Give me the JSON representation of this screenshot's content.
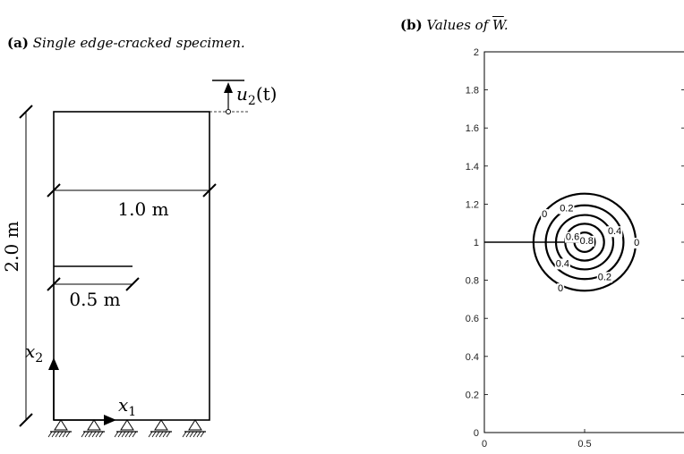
{
  "panel_a": {
    "tag": "(a)",
    "caption": "Single edge-cracked specimen.",
    "height_label": "2.0 m",
    "width_label": "1.0 m",
    "crack_label": "0.5 m",
    "x1_label": "x",
    "x1_sub": "1",
    "x2_label": "x",
    "x2_sub": "2",
    "disp_label": "u",
    "disp_sub": "2",
    "disp_arg": "(t)"
  },
  "panel_b": {
    "tag": "(b)",
    "caption_pre": "Values of ",
    "caption_sym": "W",
    "caption_post": "."
  },
  "chart_data": {
    "type": "contour",
    "xlim": [
      0,
      1
    ],
    "ylim": [
      0,
      2
    ],
    "x_ticks": [
      "0",
      "0.5"
    ],
    "y_ticks": [
      "0",
      "0.2",
      "0.4",
      "0.6",
      "0.8",
      "1",
      "1.2",
      "1.4",
      "1.6",
      "1.8",
      "2"
    ],
    "crack": {
      "x": [
        0,
        0.5
      ],
      "y": [
        1,
        1
      ]
    },
    "contours": [
      {
        "level": "0",
        "radius": 0.25
      },
      {
        "level": "0.2",
        "radius": 0.19
      },
      {
        "level": "0.4",
        "radius": 0.14
      },
      {
        "level": "0.6",
        "radius": 0.095
      },
      {
        "level": "0.8",
        "radius": 0.05
      }
    ],
    "center": [
      0.5,
      1
    ],
    "contour_labels": [
      {
        "text": "0",
        "x": 0.3,
        "y": 1.15
      },
      {
        "text": "0.2",
        "x": 0.41,
        "y": 1.18
      },
      {
        "text": "0",
        "x": 0.76,
        "y": 1.0
      },
      {
        "text": "0.4",
        "x": 0.65,
        "y": 1.06
      },
      {
        "text": "0.6",
        "x": 0.44,
        "y": 1.03
      },
      {
        "text": "0.8",
        "x": 0.51,
        "y": 1.01
      },
      {
        "text": "0.4",
        "x": 0.39,
        "y": 0.89
      },
      {
        "text": "0.2",
        "x": 0.6,
        "y": 0.82
      },
      {
        "text": "0",
        "x": 0.38,
        "y": 0.76
      }
    ]
  }
}
